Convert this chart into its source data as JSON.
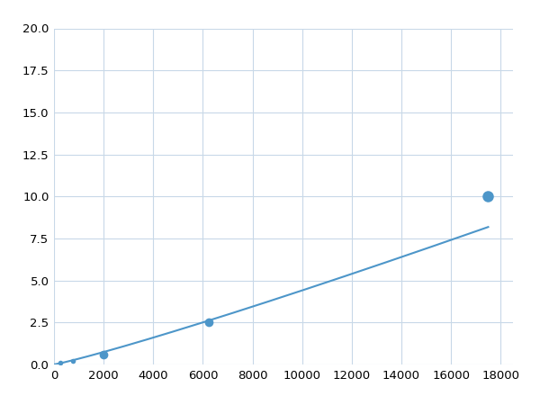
{
  "x_points": [
    0,
    250,
    750,
    2000,
    6250,
    17500
  ],
  "y_points": [
    0.0,
    0.1,
    0.2,
    0.6,
    2.5,
    10.0
  ],
  "line_color": "#4d96c9",
  "marker_color": "#4d96c9",
  "marker_indices": [
    1,
    2,
    3,
    4,
    5
  ],
  "marker_sizes": [
    4,
    4,
    7,
    7,
    9
  ],
  "linewidth": 1.5,
  "xlim": [
    0,
    18500
  ],
  "ylim": [
    0,
    20.0
  ],
  "xticks": [
    0,
    2000,
    4000,
    6000,
    8000,
    10000,
    12000,
    14000,
    16000,
    18000
  ],
  "yticks": [
    0.0,
    2.5,
    5.0,
    7.5,
    10.0,
    12.5,
    15.0,
    17.5,
    20.0
  ],
  "grid_color": "#c8d8e8",
  "background_color": "#ffffff",
  "tick_fontsize": 9.5,
  "figsize": [
    6.0,
    4.5
  ],
  "dpi": 100
}
